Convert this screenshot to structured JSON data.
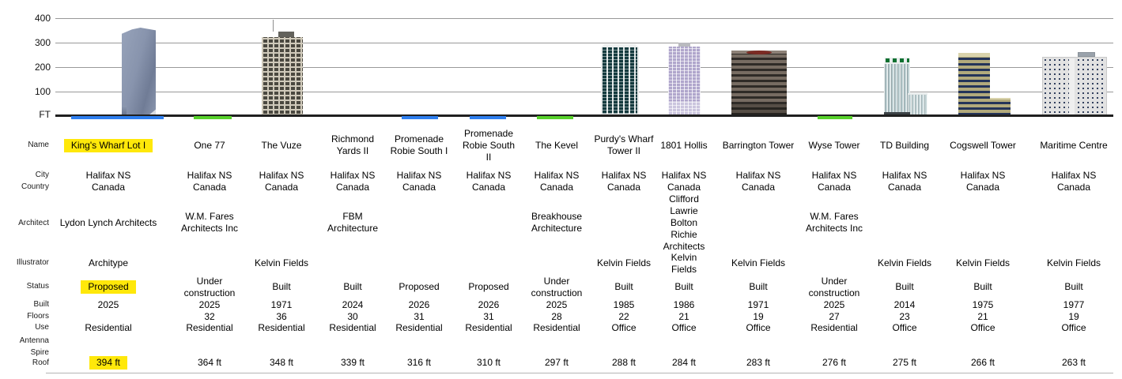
{
  "chart": {
    "unit_label": "FT",
    "tick_labels": [
      "400",
      "300",
      "200",
      "100"
    ],
    "colors": {
      "proposed_marker": "#2e7ff0",
      "under_construction_marker": "#57d12b",
      "highlight": "#ffe80a"
    }
  },
  "row_labels": {
    "name": "Name",
    "city": "City",
    "country": "Country",
    "architect": "Architect",
    "illustrator": "Illustrator",
    "status": "Status",
    "built": "Built",
    "floors": "Floors",
    "use": "Use",
    "antenna": "Antenna",
    "spire": "Spire",
    "roof": "Roof"
  },
  "buildings": [
    {
      "id": "kings-wharf-lot-1",
      "name": "King's Wharf Lot I",
      "city": "Halifax NS",
      "country": "Canada",
      "architect": "Lydon Lynch Architects",
      "illustrator": "Architype",
      "status": "Proposed",
      "built": "2025",
      "floors": "",
      "use": "Residential",
      "antenna": "",
      "spire": "",
      "roof": "394 ft",
      "highlighted": [
        "name",
        "status",
        "roof"
      ]
    },
    {
      "id": "one-77",
      "name": "One 77",
      "city": "Halifax NS",
      "country": "Canada",
      "architect": "W.M. Fares Architects Inc",
      "illustrator": "",
      "status": "Under construction",
      "built": "2025",
      "floors": "32",
      "use": "Residential",
      "antenna": "",
      "spire": "",
      "roof": "364 ft",
      "highlighted": []
    },
    {
      "id": "the-vuze",
      "name": "The Vuze",
      "city": "Halifax NS",
      "country": "Canada",
      "architect": "",
      "illustrator": "Kelvin Fields",
      "status": "Built",
      "built": "1971",
      "floors": "36",
      "use": "Residential",
      "antenna": "",
      "spire": "",
      "roof": "348 ft",
      "highlighted": []
    },
    {
      "id": "richmond-yards-2",
      "name": "Richmond Yards II",
      "city": "Halifax NS",
      "country": "Canada",
      "architect": "FBM Architecture",
      "illustrator": "",
      "status": "Built",
      "built": "2024",
      "floors": "30",
      "use": "Residential",
      "antenna": "",
      "spire": "",
      "roof": "339 ft",
      "highlighted": []
    },
    {
      "id": "promenade-robie-south-1",
      "name": "Promenade Robie South I",
      "city": "Halifax NS",
      "country": "Canada",
      "architect": "",
      "illustrator": "",
      "status": "Proposed",
      "built": "2026",
      "floors": "31",
      "use": "Residential",
      "antenna": "",
      "spire": "",
      "roof": "316 ft",
      "highlighted": []
    },
    {
      "id": "promenade-robie-south-2",
      "name": "Promenade Robie South II",
      "city": "Halifax NS",
      "country": "Canada",
      "architect": "",
      "illustrator": "",
      "status": "Proposed",
      "built": "2026",
      "floors": "31",
      "use": "Residential",
      "antenna": "",
      "spire": "",
      "roof": "310 ft",
      "highlighted": []
    },
    {
      "id": "the-kevel",
      "name": "The Kevel",
      "city": "Halifax NS",
      "country": "Canada",
      "architect": "Breakhouse Architecture",
      "illustrator": "",
      "status": "Under construction",
      "built": "2025",
      "floors": "28",
      "use": "Residential",
      "antenna": "",
      "spire": "",
      "roof": "297 ft",
      "highlighted": []
    },
    {
      "id": "purdys-wharf-tower-2",
      "name": "Purdy's Wharf Tower II",
      "city": "Halifax NS",
      "country": "Canada",
      "architect": "",
      "illustrator": "Kelvin Fields",
      "status": "Built",
      "built": "1985",
      "floors": "22",
      "use": "Office",
      "antenna": "",
      "spire": "",
      "roof": "288 ft",
      "highlighted": []
    },
    {
      "id": "hollis-1801",
      "name": "1801 Hollis",
      "city": "Halifax NS",
      "country": "Canada",
      "architect": "Clifford Lawrie Bolton Richie Architects",
      "illustrator": "Kelvin Fields",
      "status": "Built",
      "built": "1986",
      "floors": "21",
      "use": "Office",
      "antenna": "",
      "spire": "",
      "roof": "284 ft",
      "highlighted": []
    },
    {
      "id": "barrington-tower",
      "name": "Barrington Tower",
      "city": "Halifax NS",
      "country": "Canada",
      "architect": "",
      "illustrator": "Kelvin Fields",
      "status": "Built",
      "built": "1971",
      "floors": "19",
      "use": "Office",
      "antenna": "",
      "spire": "",
      "roof": "283 ft",
      "highlighted": []
    },
    {
      "id": "wyse-tower",
      "name": "Wyse Tower",
      "city": "Halifax NS",
      "country": "Canada",
      "architect": "W.M. Fares Architects Inc",
      "illustrator": "",
      "status": "Under construction",
      "built": "2025",
      "floors": "27",
      "use": "Residential",
      "antenna": "",
      "spire": "",
      "roof": "276 ft",
      "highlighted": []
    },
    {
      "id": "td-building",
      "name": "TD Building",
      "city": "Halifax NS",
      "country": "Canada",
      "architect": "",
      "illustrator": "Kelvin Fields",
      "status": "Built",
      "built": "2014",
      "floors": "23",
      "use": "Office",
      "antenna": "",
      "spire": "",
      "roof": "275 ft",
      "highlighted": []
    },
    {
      "id": "cogswell-tower",
      "name": "Cogswell Tower",
      "city": "Halifax NS",
      "country": "Canada",
      "architect": "",
      "illustrator": "Kelvin Fields",
      "status": "Built",
      "built": "1975",
      "floors": "21",
      "use": "Office",
      "antenna": "",
      "spire": "",
      "roof": "266 ft",
      "highlighted": []
    },
    {
      "id": "maritime-centre",
      "name": "Maritime Centre",
      "city": "Halifax NS",
      "country": "Canada",
      "architect": "",
      "illustrator": "Kelvin Fields",
      "status": "Built",
      "built": "1977",
      "floors": "19",
      "use": "Office",
      "antenna": "",
      "spire": "",
      "roof": "263 ft",
      "highlighted": []
    }
  ]
}
